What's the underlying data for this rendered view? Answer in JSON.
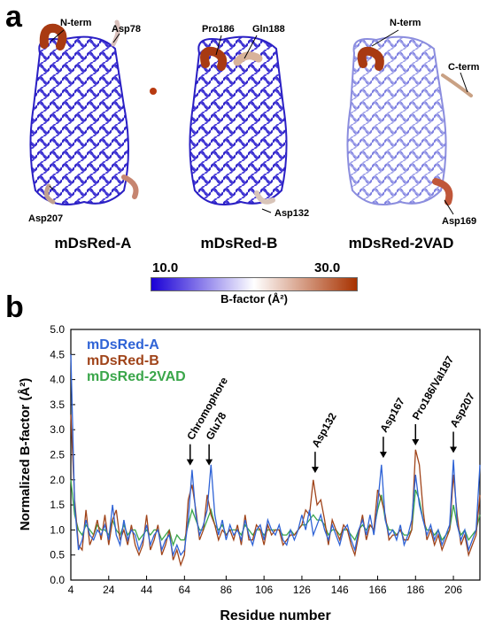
{
  "panel_a": {
    "letter": "a",
    "structures": [
      {
        "name": "mDsRed-A",
        "annotations": [
          "N-term",
          "Asp78",
          "Asp207"
        ]
      },
      {
        "name": "mDsRed-B",
        "annotations": [
          "Pro186",
          "Gln188",
          "Asp132"
        ]
      },
      {
        "name": "mDsRed-2VAD",
        "annotations": [
          "N-term",
          "C-term",
          "Asp169"
        ]
      }
    ],
    "colorbar": {
      "min_label": "10.0",
      "max_label": "30.0",
      "title": "B-factor (Å²)",
      "colors": [
        "#1a00d6",
        "#ffffff",
        "#a83200"
      ]
    }
  },
  "panel_b": {
    "letter": "b"
  },
  "chart_data": {
    "type": "line",
    "xlabel": "Residue number",
    "ylabel": "Normalized B-factor (Å²)",
    "xlim": [
      4,
      220
    ],
    "ylim": [
      0,
      5
    ],
    "xticks": [
      4,
      24,
      44,
      64,
      86,
      106,
      126,
      146,
      166,
      186,
      206
    ],
    "yticks": [
      "0.0",
      "0.5",
      "1.0",
      "1.5",
      "2.0",
      "2.5",
      "3.0",
      "3.5",
      "4.0",
      "4.5",
      "5.0"
    ],
    "legend_position": "top-left",
    "series": [
      {
        "name": "mDsRed-A",
        "color": "#2f63d6",
        "x": [
          4,
          6,
          8,
          10,
          12,
          14,
          16,
          18,
          20,
          22,
          24,
          26,
          28,
          30,
          32,
          34,
          36,
          38,
          40,
          42,
          44,
          46,
          48,
          50,
          52,
          54,
          56,
          58,
          60,
          62,
          64,
          66,
          68,
          70,
          72,
          74,
          76,
          78,
          80,
          82,
          84,
          86,
          88,
          90,
          92,
          94,
          96,
          98,
          100,
          102,
          104,
          106,
          108,
          110,
          112,
          114,
          116,
          118,
          120,
          122,
          124,
          126,
          128,
          130,
          132,
          134,
          136,
          138,
          140,
          142,
          144,
          146,
          148,
          150,
          152,
          154,
          156,
          158,
          160,
          162,
          164,
          166,
          168,
          170,
          172,
          174,
          176,
          178,
          180,
          182,
          184,
          186,
          188,
          190,
          192,
          194,
          196,
          198,
          200,
          202,
          204,
          206,
          208,
          210,
          212,
          214,
          216,
          218,
          220
        ],
        "y": [
          4.5,
          1.5,
          0.6,
          0.8,
          1.2,
          0.9,
          0.8,
          1.0,
          0.9,
          1.1,
          0.8,
          1.5,
          0.9,
          0.7,
          1.2,
          0.8,
          1.0,
          0.9,
          0.6,
          0.8,
          1.1,
          0.7,
          0.9,
          1.0,
          0.6,
          0.8,
          0.9,
          0.5,
          0.7,
          0.5,
          0.6,
          1.2,
          2.2,
          1.3,
          0.9,
          1.1,
          1.4,
          2.3,
          1.3,
          0.9,
          1.2,
          0.8,
          1.1,
          0.9,
          1.0,
          0.8,
          1.2,
          0.9,
          0.7,
          1.0,
          1.1,
          0.8,
          1.2,
          1.0,
          0.9,
          1.1,
          0.8,
          0.7,
          1.0,
          0.8,
          1.0,
          1.3,
          1.0,
          1.4,
          0.9,
          1.1,
          1.3,
          1.0,
          0.8,
          1.1,
          0.9,
          0.7,
          1.0,
          1.1,
          0.8,
          0.6,
          1.0,
          1.2,
          0.9,
          1.3,
          0.9,
          1.5,
          2.3,
          1.2,
          0.9,
          1.0,
          0.8,
          1.1,
          0.7,
          0.9,
          1.2,
          2.1,
          1.5,
          1.2,
          0.9,
          1.1,
          0.8,
          1.0,
          0.7,
          0.9,
          1.1,
          2.4,
          1.1,
          0.8,
          1.0,
          0.6,
          0.8,
          1.0,
          2.3
        ]
      },
      {
        "name": "mDsRed-B",
        "color": "#a0441a",
        "x": [
          4,
          6,
          8,
          10,
          12,
          14,
          16,
          18,
          20,
          22,
          24,
          26,
          28,
          30,
          32,
          34,
          36,
          38,
          40,
          42,
          44,
          46,
          48,
          50,
          52,
          54,
          56,
          58,
          60,
          62,
          64,
          66,
          68,
          70,
          72,
          74,
          76,
          78,
          80,
          82,
          84,
          86,
          88,
          90,
          92,
          94,
          96,
          98,
          100,
          102,
          104,
          106,
          108,
          110,
          112,
          114,
          116,
          118,
          120,
          122,
          124,
          126,
          128,
          130,
          132,
          134,
          136,
          138,
          140,
          142,
          144,
          146,
          148,
          150,
          152,
          154,
          156,
          158,
          160,
          162,
          164,
          166,
          168,
          170,
          172,
          174,
          176,
          178,
          180,
          182,
          184,
          186,
          188,
          190,
          192,
          194,
          196,
          198,
          200,
          202,
          204,
          206,
          208,
          210,
          212,
          214,
          216,
          218,
          220
        ],
        "y": [
          3.3,
          1.6,
          0.7,
          0.6,
          1.4,
          0.7,
          0.9,
          1.2,
          0.8,
          1.3,
          0.7,
          1.2,
          1.4,
          0.8,
          1.0,
          0.7,
          1.1,
          0.7,
          0.5,
          0.7,
          1.3,
          0.6,
          0.8,
          1.1,
          0.5,
          0.7,
          1.0,
          0.4,
          0.6,
          0.3,
          0.5,
          1.6,
          1.9,
          1.4,
          0.8,
          1.0,
          1.7,
          1.3,
          1.1,
          0.8,
          1.0,
          0.9,
          1.0,
          0.8,
          1.1,
          0.7,
          1.3,
          0.8,
          0.8,
          1.1,
          1.0,
          0.7,
          1.1,
          0.9,
          1.0,
          1.0,
          0.7,
          0.8,
          0.9,
          0.9,
          1.0,
          1.1,
          1.4,
          1.3,
          2.0,
          1.5,
          1.6,
          1.2,
          0.7,
          1.2,
          1.0,
          0.8,
          1.1,
          1.0,
          0.7,
          0.5,
          0.9,
          1.3,
          0.8,
          1.1,
          1.0,
          1.8,
          1.6,
          1.3,
          0.8,
          0.9,
          0.9,
          1.0,
          0.8,
          0.8,
          1.0,
          2.6,
          2.3,
          1.4,
          0.8,
          1.0,
          0.7,
          0.9,
          0.6,
          0.8,
          1.0,
          2.1,
          1.3,
          0.7,
          0.9,
          0.5,
          0.7,
          0.9,
          1.7
        ]
      },
      {
        "name": "mDsRed-2VAD",
        "color": "#3aa64a",
        "x": [
          4,
          6,
          8,
          10,
          12,
          14,
          16,
          18,
          20,
          22,
          24,
          26,
          28,
          30,
          32,
          34,
          36,
          38,
          40,
          42,
          44,
          46,
          48,
          50,
          52,
          54,
          56,
          58,
          60,
          62,
          64,
          66,
          68,
          70,
          72,
          74,
          76,
          78,
          80,
          82,
          84,
          86,
          88,
          90,
          92,
          94,
          96,
          98,
          100,
          102,
          104,
          106,
          108,
          110,
          112,
          114,
          116,
          118,
          120,
          122,
          124,
          126,
          128,
          130,
          132,
          134,
          136,
          138,
          140,
          142,
          144,
          146,
          148,
          150,
          152,
          154,
          156,
          158,
          160,
          162,
          164,
          166,
          168,
          170,
          172,
          174,
          176,
          178,
          180,
          182,
          184,
          186,
          188,
          190,
          192,
          194,
          196,
          198,
          200,
          202,
          204,
          206,
          208,
          210,
          212,
          214,
          216,
          218,
          220
        ],
        "y": [
          2.0,
          1.3,
          1.0,
          0.9,
          1.1,
          1.0,
          0.9,
          1.1,
          1.0,
          1.0,
          0.9,
          1.2,
          1.0,
          0.9,
          1.1,
          0.9,
          1.0,
          1.0,
          0.8,
          0.9,
          1.0,
          0.9,
          1.0,
          1.0,
          0.8,
          0.9,
          1.0,
          0.7,
          0.9,
          0.8,
          0.8,
          1.1,
          1.4,
          1.2,
          1.0,
          1.0,
          1.2,
          1.4,
          1.1,
          1.0,
          1.1,
          0.9,
          1.0,
          1.0,
          1.0,
          0.9,
          1.1,
          1.0,
          0.9,
          1.0,
          1.0,
          0.9,
          1.0,
          1.0,
          1.0,
          1.0,
          0.9,
          0.9,
          1.0,
          0.9,
          1.0,
          1.1,
          1.1,
          1.2,
          1.3,
          1.2,
          1.2,
          1.1,
          0.9,
          1.0,
          1.0,
          0.9,
          1.0,
          1.0,
          0.9,
          0.8,
          1.0,
          1.1,
          1.0,
          1.1,
          1.0,
          1.4,
          1.7,
          1.2,
          1.0,
          1.0,
          0.9,
          1.0,
          0.9,
          0.9,
          1.0,
          1.8,
          1.6,
          1.2,
          1.0,
          1.0,
          0.9,
          1.0,
          0.8,
          0.9,
          1.0,
          1.5,
          1.1,
          0.9,
          1.0,
          0.8,
          0.9,
          1.0,
          1.3
        ]
      }
    ],
    "annotations": [
      {
        "text": "Chromophore",
        "x": 67,
        "y": 2.25
      },
      {
        "text": "Glu78",
        "x": 77,
        "y": 2.25
      },
      {
        "text": "Asp132",
        "x": 133,
        "y": 2.1
      },
      {
        "text": "Asp167",
        "x": 169,
        "y": 2.4
      },
      {
        "text": "Pro186/Val187",
        "x": 186,
        "y": 2.65
      },
      {
        "text": "Asp207",
        "x": 206,
        "y": 2.5
      }
    ]
  }
}
